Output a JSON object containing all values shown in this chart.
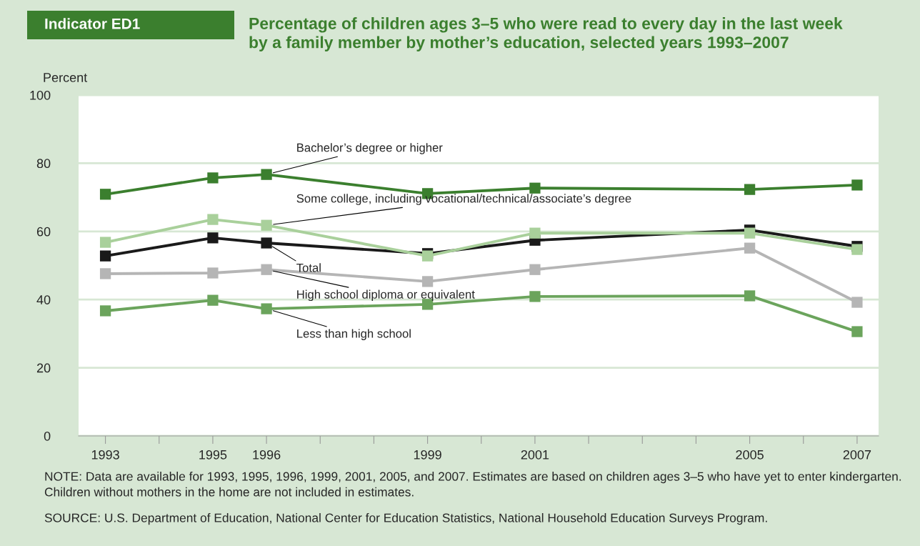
{
  "chart_data": {
    "type": "line",
    "title": "Percentage of children ages 3–5 who were read to every day in the last week\nby a family member by mother’s education, selected years 1993–2007",
    "ylabel": "Percent",
    "x": [
      1993,
      1995,
      1996,
      1999,
      2001,
      2005,
      2007
    ],
    "series": [
      {
        "name": "Bachelor’s degree or higher",
        "color": "#3b7f2e",
        "values": [
          70.9,
          75.7,
          76.7,
          71.1,
          72.7,
          72.3,
          73.6
        ]
      },
      {
        "name": "Some college, including vocational/technical/associate’s degree",
        "color": "#a9d09b",
        "values": [
          56.8,
          63.5,
          61.8,
          52.8,
          59.5,
          59.5,
          54.7
        ]
      },
      {
        "name": "Total",
        "color": "#1a1a1a",
        "values": [
          52.8,
          58.1,
          56.6,
          53.5,
          57.4,
          60.4,
          55.6
        ]
      },
      {
        "name": "High school diploma or equivalent",
        "color": "#b5b5b5",
        "values": [
          47.6,
          47.8,
          48.8,
          45.3,
          48.8,
          55.1,
          39.2
        ]
      },
      {
        "name": "Less than high school",
        "color": "#6ba45c",
        "values": [
          36.7,
          39.8,
          37.3,
          38.6,
          40.9,
          41.1,
          30.6
        ]
      }
    ],
    "xlim": [
      1992.5,
      2007.4
    ],
    "xticks": [
      1993,
      {
        "value": 1994,
        "label": null
      },
      1995,
      1996,
      {
        "value": 1997,
        "label": null
      },
      {
        "value": 1998,
        "label": null
      },
      1999,
      {
        "value": 2000,
        "label": null
      },
      2001,
      {
        "value": 2002,
        "label": null
      },
      {
        "value": 2003,
        "label": null
      },
      {
        "value": 2004,
        "label": null
      },
      2005,
      {
        "value": 2006,
        "label": null
      },
      2007
    ],
    "ylim": [
      0,
      100
    ],
    "yticks": [
      0,
      20,
      40,
      60,
      80,
      100
    ],
    "grid": "y",
    "marker": "square",
    "line_style": "solid",
    "annotations": [
      "Indicator ED1",
      "NOTE: Data are available for 1993, 1995, 1996, 1999, 2001, 2005, and 2007. Estimates are based on children ages 3–5 who have yet to enter kindergarten. Children without mothers in the home are not included in estimates.",
      "SOURCE: U.S. Department of Education, National Center for Education Statistics, National Household Education Surveys Program."
    ]
  }
}
